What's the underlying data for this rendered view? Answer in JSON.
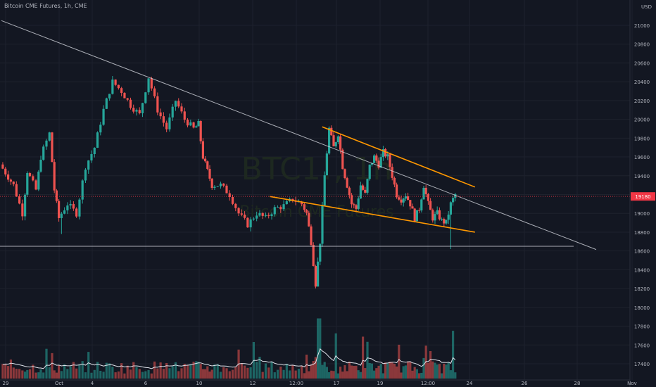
{
  "header": {
    "symbol_title": "Bitcoin CME Futures, 1h, CME",
    "currency": "USD"
  },
  "watermark": {
    "ticker": "BTC1!, 1h",
    "name": "Bitcoin CME Futures"
  },
  "price_tag": {
    "value": "19180",
    "color": "#f23645"
  },
  "colors": {
    "background": "#131722",
    "up": "#26a69a",
    "down": "#ef5350",
    "trendline": "#ff9800",
    "guide": "#d1d4dc",
    "volume_ma": "#e0e3eb"
  },
  "chart_data": {
    "type": "candlestick",
    "title": "Bitcoin CME Futures, 1h, CME",
    "ylim": [
      17300,
      21200
    ],
    "y_ticks": [
      17400,
      17600,
      17800,
      18000,
      18200,
      18400,
      18600,
      18800,
      19000,
      19200,
      19400,
      19600,
      19800,
      20000,
      20200,
      20400,
      20600,
      20800,
      21000
    ],
    "x_tick_labels": [
      "29",
      "Oct",
      "4",
      "6",
      "10",
      "12",
      "12:00",
      "17",
      "19",
      "12:00",
      "24",
      "26",
      "28",
      "Nov"
    ],
    "last_price": 19180,
    "anchors": [
      [
        0,
        19520
      ],
      [
        3,
        19300
      ],
      [
        5,
        19000
      ],
      [
        6,
        19450
      ],
      [
        8,
        19250
      ],
      [
        9,
        19600
      ],
      [
        11,
        19850
      ],
      [
        12,
        19250
      ],
      [
        13,
        18950
      ],
      [
        15,
        19100
      ],
      [
        17,
        19000
      ],
      [
        19,
        19500
      ],
      [
        21,
        19700
      ],
      [
        23,
        20100
      ],
      [
        25,
        20400
      ],
      [
        27,
        20300
      ],
      [
        29,
        20150
      ],
      [
        31,
        20050
      ],
      [
        33,
        20450
      ],
      [
        35,
        20100
      ],
      [
        37,
        19900
      ],
      [
        39,
        20200
      ],
      [
        41,
        20000
      ],
      [
        43,
        19900
      ],
      [
        44,
        19950
      ],
      [
        45,
        19600
      ],
      [
        46,
        19450
      ],
      [
        47,
        19300
      ],
      [
        49,
        19300
      ],
      [
        51,
        19200
      ],
      [
        53,
        19000
      ],
      [
        55,
        18880
      ],
      [
        57,
        19000
      ],
      [
        59,
        18950
      ],
      [
        61,
        19050
      ],
      [
        63,
        19080
      ],
      [
        65,
        19150
      ],
      [
        67,
        19100
      ],
      [
        68,
        19000
      ],
      [
        69,
        18700
      ],
      [
        70,
        18250
      ],
      [
        71,
        18700
      ],
      [
        72,
        19400
      ],
      [
        73,
        19900
      ],
      [
        74,
        19700
      ],
      [
        75,
        19850
      ],
      [
        76,
        19500
      ],
      [
        77,
        19300
      ],
      [
        78,
        19100
      ],
      [
        79,
        19050
      ],
      [
        80,
        19300
      ],
      [
        81,
        19200
      ],
      [
        82,
        19500
      ],
      [
        83,
        19600
      ],
      [
        84,
        19520
      ],
      [
        85,
        19650
      ],
      [
        86,
        19600
      ],
      [
        87,
        19400
      ],
      [
        88,
        19200
      ],
      [
        89,
        19150
      ],
      [
        90,
        19200
      ],
      [
        91,
        19100
      ],
      [
        92,
        18950
      ],
      [
        93,
        19050
      ],
      [
        94,
        19300
      ],
      [
        95,
        19100
      ],
      [
        96,
        18950
      ],
      [
        97,
        19000
      ],
      [
        98,
        18920
      ],
      [
        99,
        18900
      ],
      [
        100,
        19100
      ],
      [
        101,
        19200
      ]
    ],
    "descending_trendline": [
      [
        0,
        21050
      ],
      [
        125,
        18780
      ]
    ],
    "wedge_upper": [
      [
        72,
        19920
      ],
      [
        102,
        19280
      ]
    ],
    "wedge_lower": [
      [
        58,
        19180
      ],
      [
        102,
        18800
      ]
    ],
    "support_line": 18650,
    "volume_ylim": [
      0,
      1000
    ]
  }
}
